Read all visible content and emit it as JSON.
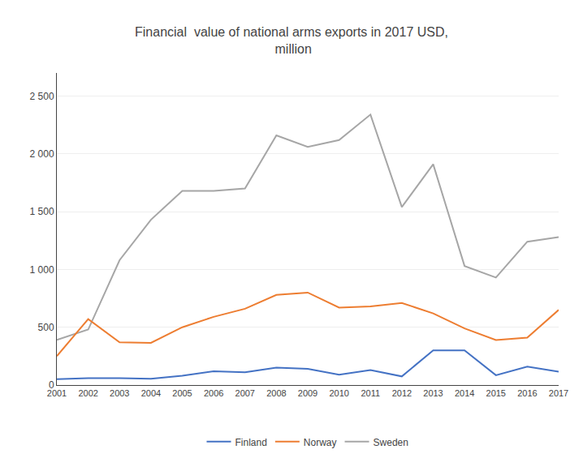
{
  "chart_data": {
    "type": "line",
    "title": "Financial  value of national arms exports in 2017 USD,\n million",
    "x": [
      2001,
      2002,
      2003,
      2004,
      2005,
      2006,
      2007,
      2008,
      2009,
      2010,
      2011,
      2012,
      2013,
      2014,
      2015,
      2016,
      2017
    ],
    "series": [
      {
        "name": "Sweden",
        "color": "#a6a6a6",
        "values": [
          390,
          480,
          1080,
          1430,
          1680,
          1680,
          1700,
          2160,
          2060,
          2120,
          2340,
          1540,
          1910,
          1030,
          930,
          1240,
          1280
        ]
      },
      {
        "name": "Norway",
        "color": "#ed7d31",
        "values": [
          250,
          570,
          370,
          365,
          500,
          590,
          660,
          780,
          800,
          670,
          680,
          710,
          620,
          490,
          390,
          410,
          650
        ]
      },
      {
        "name": "Finland",
        "color": "#4472c4",
        "values": [
          50,
          60,
          60,
          55,
          80,
          120,
          110,
          150,
          140,
          90,
          130,
          75,
          300,
          300,
          85,
          160,
          115
        ]
      }
    ],
    "xlim": [
      2001,
      2017
    ],
    "xticks": [
      2001,
      2002,
      2003,
      2004,
      2005,
      2006,
      2007,
      2008,
      2009,
      2010,
      2011,
      2012,
      2013,
      2014,
      2015,
      2016,
      2017
    ],
    "ylim": [
      0,
      2700
    ],
    "yticks": [
      0,
      500,
      {
        "value": 1000,
        "label": "1 000"
      },
      {
        "value": 1500,
        "label": "1 500"
      },
      {
        "value": 2000,
        "label": "2 000"
      },
      {
        "value": 2500,
        "label": "2 500"
      }
    ],
    "grid": true,
    "legend": "bottom"
  }
}
